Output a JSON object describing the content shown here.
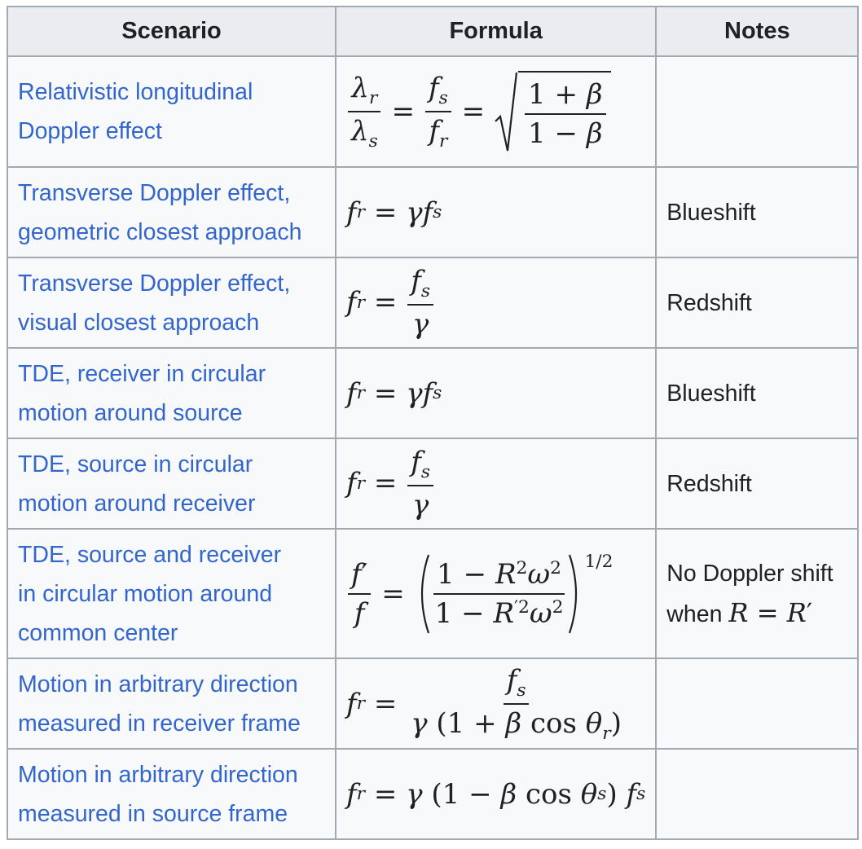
{
  "table": {
    "headers": {
      "scenario": "Scenario",
      "formula": "Formula",
      "notes": "Notes"
    },
    "rows": [
      {
        "scenario_line1": "Relativistic longitudinal",
        "scenario_line2": "Doppler effect",
        "note": ""
      },
      {
        "scenario_line1": "Transverse Doppler effect,",
        "scenario_line2": "geometric closest approach",
        "note": "Blueshift"
      },
      {
        "scenario_line1": "Transverse Doppler effect,",
        "scenario_line2": "visual closest approach",
        "note": "Redshift"
      },
      {
        "scenario_line1": "TDE, receiver in circular",
        "scenario_line2": "motion around source",
        "note": "Blueshift"
      },
      {
        "scenario_line1": "TDE, source in circular",
        "scenario_line2": "motion around receiver",
        "note": "Redshift"
      },
      {
        "scenario_line1": "TDE, source and receiver",
        "scenario_line2": "in circular motion around",
        "scenario_line3": "common center",
        "note_line1": "No Doppler shift",
        "note_line2_prefix": "when "
      },
      {
        "scenario_line1": "Motion in arbitrary direction",
        "scenario_line2": "measured in receiver frame",
        "note": ""
      },
      {
        "scenario_line1": "Motion in arbitrary direction",
        "scenario_line2": "measured in source frame",
        "note": ""
      }
    ]
  },
  "colors": {
    "link": "#3366cc",
    "header_bg": "#eaecf0",
    "cell_bg": "#f8f9fa",
    "border": "#a2a9b1",
    "text": "#202122"
  }
}
